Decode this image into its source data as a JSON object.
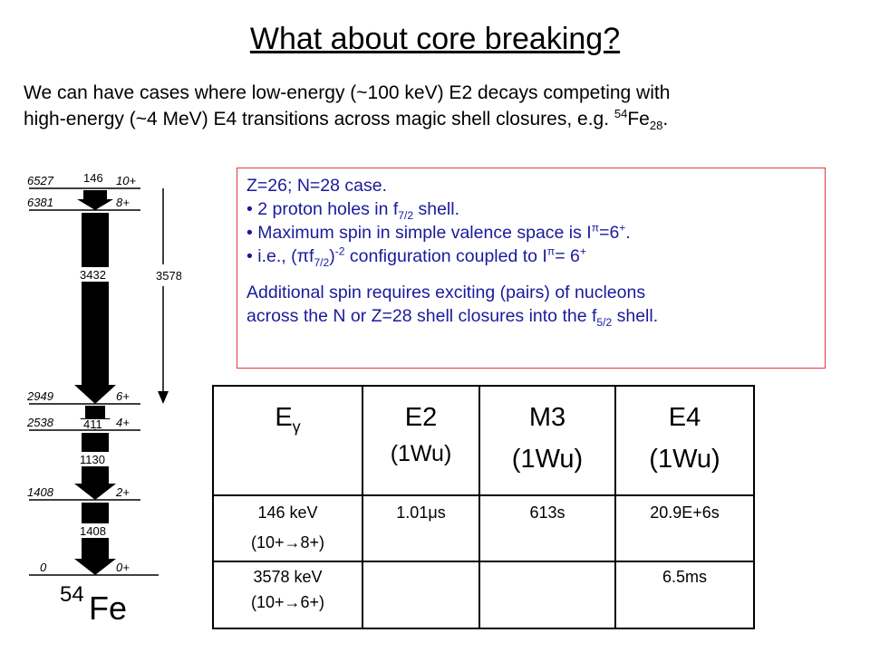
{
  "title": "What about core breaking?",
  "intro": {
    "line1": "We can have cases where low-energy (~100 keV) E2 decays competing with",
    "line2_pre": "high-energy (~4 MeV) E4 transitions across magic shell closures, e.g. ",
    "mass": "54",
    "element": "Fe",
    "z_sub": "28",
    "end": "."
  },
  "level_scheme": {
    "levels": [
      {
        "energy": "6527",
        "spin": "10+"
      },
      {
        "energy": "6381",
        "spin": "8+"
      },
      {
        "energy": "2949",
        "spin": "6+"
      },
      {
        "energy": "2538",
        "spin": "4+"
      },
      {
        "energy": "1408",
        "spin": "2+"
      },
      {
        "energy": "0",
        "spin": "0+"
      }
    ],
    "transitions": [
      "146",
      "3432",
      "411",
      "1130",
      "1408",
      "3578"
    ],
    "nucleus_mass": "54",
    "nucleus_symbol": "Fe"
  },
  "info_box": {
    "line1": "Z=26; N=28 case.",
    "b1_pre": "• 2 proton holes in f",
    "b1_sub": "7/2",
    "b1_post": " shell.",
    "b2_pre": "• Maximum spin in simple valence space is I",
    "b2_sup1": "π",
    "b2_mid": "=6",
    "b2_sup2": "+",
    "b2_post": ".",
    "b3_pre": "• i.e., (πf",
    "b3_sub": "7/2",
    "b3_mid": ")",
    "b3_sup": "-2",
    "b3_mid2": " configuration coupled to I",
    "b3_sup2": "π",
    "b3_mid3": "= 6",
    "b3_sup3": "+",
    "para_line1": "Additional spin requires exciting (pairs) of nucleons",
    "para_line2_pre": "across the N or Z=28 shell closures into the f",
    "para_sub": "5/2",
    "para_post": " shell."
  },
  "table": {
    "header": {
      "col1_main": "E",
      "col1_sub": "γ",
      "col2_main": "E2",
      "col2_unit": "(1Wu)",
      "col3_main": "M3",
      "col3_unit": "(1Wu)",
      "col4_main": "E4",
      "col4_unit": "(1Wu)"
    },
    "rows": [
      {
        "energy": "146 keV",
        "transition": "(10+→8+)",
        "e2": "1.01μs",
        "m3": "613s",
        "e4": "20.9E+6s"
      },
      {
        "energy": "3578 keV",
        "transition": "(10+→6+)",
        "e2": "",
        "m3": "",
        "e4": "6.5ms"
      }
    ]
  }
}
